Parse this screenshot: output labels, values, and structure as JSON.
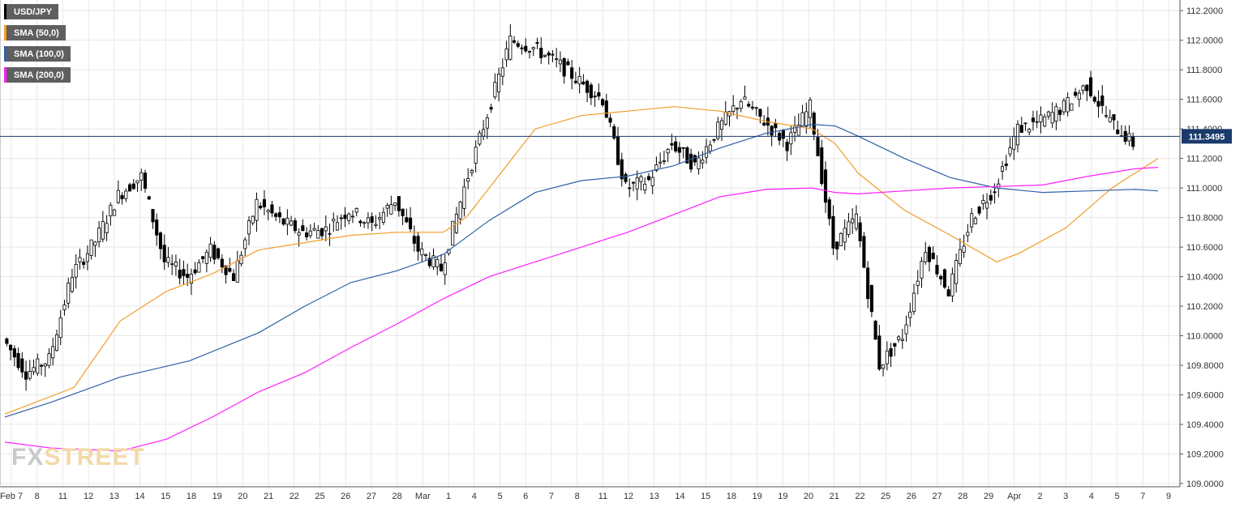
{
  "legend": [
    {
      "label": "USD/JPY",
      "color": "#000000"
    },
    {
      "label": "SMA (50,0)",
      "color": "#f39c2b"
    },
    {
      "label": "SMA (100,0)",
      "color": "#2f5fa7"
    },
    {
      "label": "SMA (200,0)",
      "color": "#ff1dff"
    }
  ],
  "watermark": {
    "left": "FX",
    "right": "STREET"
  },
  "price_label": "111.3495",
  "chart_data": {
    "type": "candlestick",
    "title": "",
    "ylim": [
      109.0,
      112.3
    ],
    "yticks": [
      "109.0000",
      "109.2000",
      "109.4000",
      "109.6000",
      "109.8000",
      "110.0000",
      "110.2000",
      "110.4000",
      "110.6000",
      "110.8000",
      "111.0000",
      "111.2000",
      "111.4000",
      "111.6000",
      "111.8000",
      "112.0000",
      "112.2000"
    ],
    "xticks": [
      "Feb 7",
      "8",
      "11",
      "12",
      "13",
      "14",
      "15",
      "18",
      "19",
      "20",
      "21",
      "22",
      "25",
      "26",
      "27",
      "28",
      "Mar",
      "1",
      "4",
      "5",
      "6",
      "7",
      "8",
      "11",
      "12",
      "13",
      "14",
      "15",
      "18",
      "19",
      "19",
      "20",
      "21",
      "22",
      "25",
      "26",
      "27",
      "28",
      "29",
      "Apr",
      "2",
      "3",
      "4",
      "5",
      "7",
      "9"
    ],
    "grid": true,
    "current_price": 111.3495,
    "close_anchors": [
      [
        0,
        109.98
      ],
      [
        1,
        109.75
      ],
      [
        2,
        109.84
      ],
      [
        3,
        110.42
      ],
      [
        4,
        110.64
      ],
      [
        5,
        110.95
      ],
      [
        6,
        111.08
      ],
      [
        7,
        110.5
      ],
      [
        8,
        110.4
      ],
      [
        9,
        110.58
      ],
      [
        10,
        110.4
      ],
      [
        11,
        110.9
      ],
      [
        12,
        110.78
      ],
      [
        13,
        110.7
      ],
      [
        14,
        110.72
      ],
      [
        15,
        110.85
      ],
      [
        16,
        110.75
      ],
      [
        17,
        110.92
      ],
      [
        18,
        110.58
      ],
      [
        19,
        110.45
      ],
      [
        20,
        111.0
      ],
      [
        21,
        111.5
      ],
      [
        22,
        112.0
      ],
      [
        23,
        111.95
      ],
      [
        24,
        111.85
      ],
      [
        25,
        111.72
      ],
      [
        26,
        111.6
      ],
      [
        27,
        111.0
      ],
      [
        28,
        111.05
      ],
      [
        29,
        111.3
      ],
      [
        30,
        111.15
      ],
      [
        31,
        111.4
      ],
      [
        32,
        111.6
      ],
      [
        33,
        111.45
      ],
      [
        34,
        111.3
      ],
      [
        35,
        111.55
      ],
      [
        36,
        110.6
      ],
      [
        37,
        110.8
      ],
      [
        38,
        109.8
      ],
      [
        39,
        110.0
      ],
      [
        40,
        110.6
      ],
      [
        41,
        110.3
      ],
      [
        42,
        110.8
      ],
      [
        43,
        111.0
      ],
      [
        44,
        111.4
      ],
      [
        45,
        111.45
      ],
      [
        46,
        111.55
      ],
      [
        47,
        111.7
      ],
      [
        48,
        111.45
      ],
      [
        49,
        111.3
      ]
    ],
    "series": [
      {
        "name": "SMA (50,0)",
        "points": [
          [
            0,
            109.47
          ],
          [
            3,
            109.65
          ],
          [
            5,
            110.1
          ],
          [
            7,
            110.3
          ],
          [
            9,
            110.42
          ],
          [
            11,
            110.58
          ],
          [
            13,
            110.63
          ],
          [
            15,
            110.68
          ],
          [
            17,
            110.7
          ],
          [
            19,
            110.7
          ],
          [
            20,
            110.8
          ],
          [
            21,
            111.0
          ],
          [
            23,
            111.4
          ],
          [
            25,
            111.49
          ],
          [
            27,
            111.52
          ],
          [
            29,
            111.55
          ],
          [
            31,
            111.52
          ],
          [
            33,
            111.45
          ],
          [
            35,
            111.4
          ],
          [
            36,
            111.3
          ],
          [
            37,
            111.1
          ],
          [
            39,
            110.85
          ],
          [
            41,
            110.68
          ],
          [
            43,
            110.5
          ],
          [
            44,
            110.56
          ],
          [
            46,
            110.73
          ],
          [
            48,
            111.0
          ],
          [
            50,
            111.2
          ]
        ]
      },
      {
        "name": "SMA (100,0)",
        "points": [
          [
            0,
            109.45
          ],
          [
            2,
            109.55
          ],
          [
            5,
            109.72
          ],
          [
            8,
            109.83
          ],
          [
            11,
            110.02
          ],
          [
            13,
            110.2
          ],
          [
            15,
            110.36
          ],
          [
            17,
            110.44
          ],
          [
            19,
            110.55
          ],
          [
            21,
            110.78
          ],
          [
            23,
            110.97
          ],
          [
            25,
            111.05
          ],
          [
            27,
            111.08
          ],
          [
            29,
            111.15
          ],
          [
            31,
            111.27
          ],
          [
            33,
            111.37
          ],
          [
            35,
            111.43
          ],
          [
            36,
            111.42
          ],
          [
            37,
            111.35
          ],
          [
            39,
            111.2
          ],
          [
            41,
            111.07
          ],
          [
            43,
            111.0
          ],
          [
            45,
            110.97
          ],
          [
            47,
            110.98
          ],
          [
            49,
            110.99
          ],
          [
            50,
            110.98
          ]
        ]
      },
      {
        "name": "SMA (200,0)",
        "points": [
          [
            0,
            109.28
          ],
          [
            2,
            109.24
          ],
          [
            5,
            109.22
          ],
          [
            7,
            109.3
          ],
          [
            9,
            109.45
          ],
          [
            11,
            109.62
          ],
          [
            13,
            109.75
          ],
          [
            15,
            109.92
          ],
          [
            17,
            110.08
          ],
          [
            19,
            110.25
          ],
          [
            21,
            110.4
          ],
          [
            23,
            110.5
          ],
          [
            25,
            110.6
          ],
          [
            27,
            110.7
          ],
          [
            29,
            110.82
          ],
          [
            31,
            110.94
          ],
          [
            33,
            110.99
          ],
          [
            35,
            111.0
          ],
          [
            36,
            110.97
          ],
          [
            37,
            110.96
          ],
          [
            39,
            110.98
          ],
          [
            41,
            111.0
          ],
          [
            43,
            111.01
          ],
          [
            45,
            111.02
          ],
          [
            47,
            111.08
          ],
          [
            49,
            111.13
          ],
          [
            50,
            111.14
          ]
        ]
      }
    ],
    "colors": {
      "bull": "#ffffff",
      "bear": "#000000",
      "price_line": "#1a3a6b",
      "price_tag_bg": "#1a3a6b",
      "grid": "#e8e8e8",
      "axis": "#555555",
      "tick_text": "#333333"
    }
  }
}
